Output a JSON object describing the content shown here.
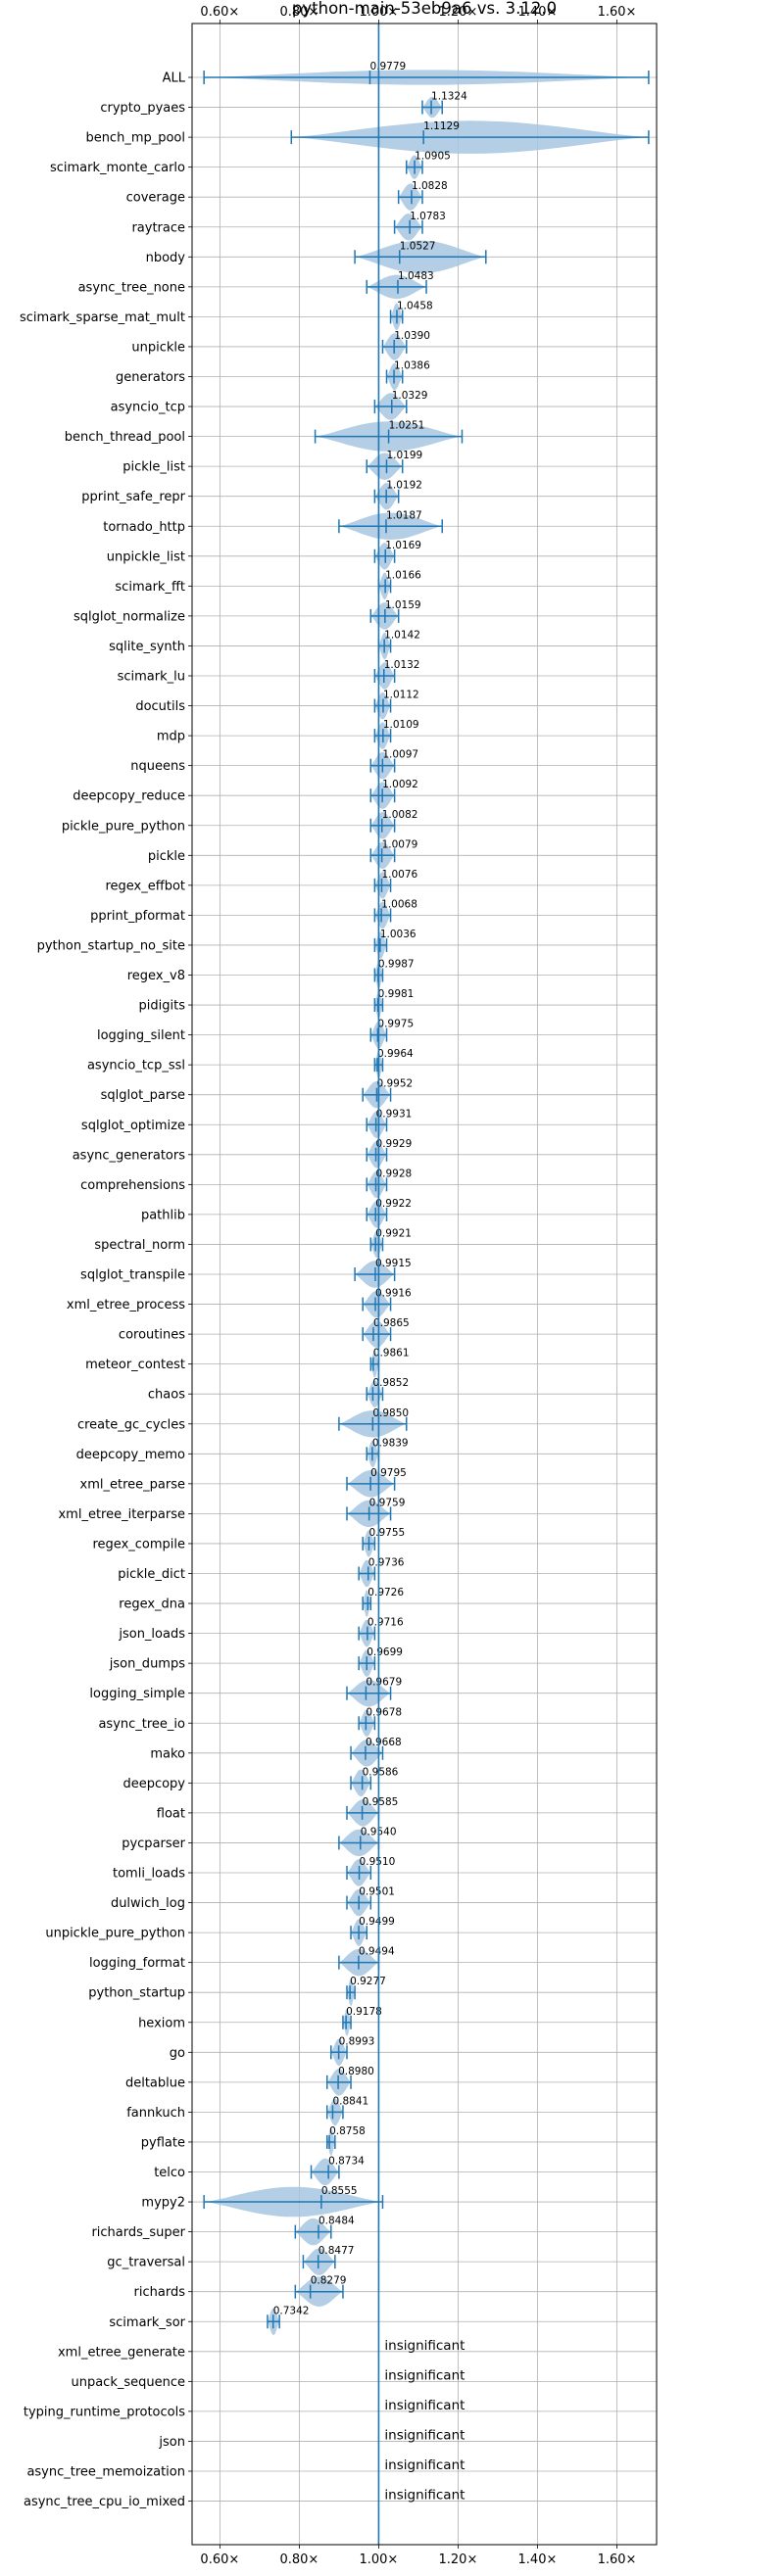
{
  "chart_data": {
    "type": "violin",
    "title": "python-main-53eb9a6 vs. 3.12.0",
    "xlim": [
      0.53,
      1.7
    ],
    "x_ticks": [
      0.6,
      0.8,
      1.0,
      1.2,
      1.4,
      1.6
    ],
    "x_tick_labels": [
      "0.60×",
      "0.80×",
      "1.00×",
      "1.20×",
      "1.40×",
      "1.60×"
    ],
    "tick_positions": [
      "top",
      "bottom"
    ],
    "grid": true,
    "reference_line": 1.0,
    "colors": {
      "violin": "#a6c5e0",
      "line": "#1f77b4",
      "grid": "#b0b0b0"
    },
    "benchmarks": [
      {
        "name": "ALL",
        "label": "0.9779",
        "center": 0.9779,
        "min": 0.56,
        "max": 1.68,
        "width": 0.25
      },
      {
        "name": "crypto_pyaes",
        "label": "1.1324",
        "center": 1.1324,
        "min": 1.11,
        "max": 1.16,
        "width": 0.35
      },
      {
        "name": "bench_mp_pool",
        "label": "1.1129",
        "center": 1.1129,
        "min": 0.78,
        "max": 1.68,
        "width": 0.55
      },
      {
        "name": "scimark_monte_carlo",
        "label": "1.0905",
        "center": 1.0905,
        "min": 1.07,
        "max": 1.11,
        "width": 0.4
      },
      {
        "name": "coverage",
        "label": "1.0828",
        "center": 1.0828,
        "min": 1.05,
        "max": 1.11,
        "width": 0.45
      },
      {
        "name": "raytrace",
        "label": "1.0783",
        "center": 1.0783,
        "min": 1.04,
        "max": 1.11,
        "width": 0.45
      },
      {
        "name": "nbody",
        "label": "1.0527",
        "center": 1.0527,
        "min": 0.94,
        "max": 1.27,
        "width": 0.55
      },
      {
        "name": "async_tree_none",
        "label": "1.0483",
        "center": 1.0483,
        "min": 0.97,
        "max": 1.12,
        "width": 0.4
      },
      {
        "name": "scimark_sparse_mat_mult",
        "label": "1.0458",
        "center": 1.0458,
        "min": 1.03,
        "max": 1.06,
        "width": 0.45
      },
      {
        "name": "unpickle",
        "label": "1.0390",
        "center": 1.039,
        "min": 1.01,
        "max": 1.07,
        "width": 0.45
      },
      {
        "name": "generators",
        "label": "1.0386",
        "center": 1.0386,
        "min": 1.02,
        "max": 1.06,
        "width": 0.45
      },
      {
        "name": "asyncio_tcp",
        "label": "1.0329",
        "center": 1.0329,
        "min": 0.99,
        "max": 1.07,
        "width": 0.45
      },
      {
        "name": "bench_thread_pool",
        "label": "1.0251",
        "center": 1.0251,
        "min": 0.84,
        "max": 1.21,
        "width": 0.5
      },
      {
        "name": "pickle_list",
        "label": "1.0199",
        "center": 1.0199,
        "min": 0.97,
        "max": 1.06,
        "width": 0.45
      },
      {
        "name": "pprint_safe_repr",
        "label": "1.0192",
        "center": 1.0192,
        "min": 0.99,
        "max": 1.05,
        "width": 0.45
      },
      {
        "name": "tornado_http",
        "label": "1.0187",
        "center": 1.0187,
        "min": 0.9,
        "max": 1.16,
        "width": 0.45
      },
      {
        "name": "unpickle_list",
        "label": "1.0169",
        "center": 1.0169,
        "min": 0.99,
        "max": 1.04,
        "width": 0.45
      },
      {
        "name": "scimark_fft",
        "label": "1.0166",
        "center": 1.0166,
        "min": 1.0,
        "max": 1.03,
        "width": 0.45
      },
      {
        "name": "sqlglot_normalize",
        "label": "1.0159",
        "center": 1.0159,
        "min": 0.98,
        "max": 1.05,
        "width": 0.45
      },
      {
        "name": "sqlite_synth",
        "label": "1.0142",
        "center": 1.0142,
        "min": 1.0,
        "max": 1.03,
        "width": 0.45
      },
      {
        "name": "scimark_lu",
        "label": "1.0132",
        "center": 1.0132,
        "min": 0.99,
        "max": 1.04,
        "width": 0.45
      },
      {
        "name": "docutils",
        "label": "1.0112",
        "center": 1.0112,
        "min": 0.99,
        "max": 1.03,
        "width": 0.45
      },
      {
        "name": "mdp",
        "label": "1.0109",
        "center": 1.0109,
        "min": 0.99,
        "max": 1.03,
        "width": 0.45
      },
      {
        "name": "nqueens",
        "label": "1.0097",
        "center": 1.0097,
        "min": 0.98,
        "max": 1.04,
        "width": 0.45
      },
      {
        "name": "deepcopy_reduce",
        "label": "1.0092",
        "center": 1.0092,
        "min": 0.98,
        "max": 1.04,
        "width": 0.45
      },
      {
        "name": "pickle_pure_python",
        "label": "1.0082",
        "center": 1.0082,
        "min": 0.98,
        "max": 1.04,
        "width": 0.45
      },
      {
        "name": "pickle",
        "label": "1.0079",
        "center": 1.0079,
        "min": 0.98,
        "max": 1.04,
        "width": 0.45
      },
      {
        "name": "regex_effbot",
        "label": "1.0076",
        "center": 1.0076,
        "min": 0.99,
        "max": 1.03,
        "width": 0.45
      },
      {
        "name": "pprint_pformat",
        "label": "1.0068",
        "center": 1.0068,
        "min": 0.99,
        "max": 1.03,
        "width": 0.45
      },
      {
        "name": "python_startup_no_site",
        "label": "1.0036",
        "center": 1.0036,
        "min": 0.99,
        "max": 1.02,
        "width": 0.45
      },
      {
        "name": "regex_v8",
        "label": "0.9987",
        "center": 0.9987,
        "min": 0.99,
        "max": 1.01,
        "width": 0.45
      },
      {
        "name": "pidigits",
        "label": "0.9981",
        "center": 0.9981,
        "min": 0.99,
        "max": 1.01,
        "width": 0.45
      },
      {
        "name": "logging_silent",
        "label": "0.9975",
        "center": 0.9975,
        "min": 0.98,
        "max": 1.02,
        "width": 0.45
      },
      {
        "name": "asyncio_tcp_ssl",
        "label": "0.9964",
        "center": 0.9964,
        "min": 0.99,
        "max": 1.01,
        "width": 0.45
      },
      {
        "name": "sqlglot_parse",
        "label": "0.9952",
        "center": 0.9952,
        "min": 0.96,
        "max": 1.03,
        "width": 0.45
      },
      {
        "name": "sqlglot_optimize",
        "label": "0.9931",
        "center": 0.9931,
        "min": 0.97,
        "max": 1.02,
        "width": 0.45
      },
      {
        "name": "async_generators",
        "label": "0.9929",
        "center": 0.9929,
        "min": 0.97,
        "max": 1.02,
        "width": 0.45
      },
      {
        "name": "comprehensions",
        "label": "0.9928",
        "center": 0.9928,
        "min": 0.97,
        "max": 1.02,
        "width": 0.45
      },
      {
        "name": "pathlib",
        "label": "0.9922",
        "center": 0.9922,
        "min": 0.97,
        "max": 1.02,
        "width": 0.45
      },
      {
        "name": "spectral_norm",
        "label": "0.9921",
        "center": 0.9921,
        "min": 0.98,
        "max": 1.01,
        "width": 0.45
      },
      {
        "name": "sqlglot_transpile",
        "label": "0.9915",
        "center": 0.9915,
        "min": 0.94,
        "max": 1.04,
        "width": 0.45
      },
      {
        "name": "xml_etree_process",
        "label": "0.9916",
        "center": 0.9916,
        "min": 0.96,
        "max": 1.03,
        "width": 0.45
      },
      {
        "name": "coroutines",
        "label": "0.9865",
        "center": 0.9865,
        "min": 0.96,
        "max": 1.03,
        "width": 0.45
      },
      {
        "name": "meteor_contest",
        "label": "0.9861",
        "center": 0.9861,
        "min": 0.98,
        "max": 1.0,
        "width": 0.45
      },
      {
        "name": "chaos",
        "label": "0.9852",
        "center": 0.9852,
        "min": 0.97,
        "max": 1.01,
        "width": 0.45
      },
      {
        "name": "create_gc_cycles",
        "label": "0.9850",
        "center": 0.985,
        "min": 0.9,
        "max": 1.07,
        "width": 0.45
      },
      {
        "name": "deepcopy_memo",
        "label": "0.9839",
        "center": 0.9839,
        "min": 0.97,
        "max": 1.0,
        "width": 0.45
      },
      {
        "name": "xml_etree_parse",
        "label": "0.9795",
        "center": 0.9795,
        "min": 0.92,
        "max": 1.04,
        "width": 0.45
      },
      {
        "name": "xml_etree_iterparse",
        "label": "0.9759",
        "center": 0.9759,
        "min": 0.92,
        "max": 1.03,
        "width": 0.45
      },
      {
        "name": "regex_compile",
        "label": "0.9755",
        "center": 0.9755,
        "min": 0.96,
        "max": 0.99,
        "width": 0.45
      },
      {
        "name": "pickle_dict",
        "label": "0.9736",
        "center": 0.9736,
        "min": 0.95,
        "max": 0.99,
        "width": 0.45
      },
      {
        "name": "regex_dna",
        "label": "0.9726",
        "center": 0.9726,
        "min": 0.96,
        "max": 0.98,
        "width": 0.45
      },
      {
        "name": "json_loads",
        "label": "0.9716",
        "center": 0.9716,
        "min": 0.95,
        "max": 0.99,
        "width": 0.45
      },
      {
        "name": "json_dumps",
        "label": "0.9699",
        "center": 0.9699,
        "min": 0.95,
        "max": 0.99,
        "width": 0.45
      },
      {
        "name": "logging_simple",
        "label": "0.9679",
        "center": 0.9679,
        "min": 0.92,
        "max": 1.03,
        "width": 0.45
      },
      {
        "name": "async_tree_io",
        "label": "0.9678",
        "center": 0.9678,
        "min": 0.95,
        "max": 0.99,
        "width": 0.45
      },
      {
        "name": "mako",
        "label": "0.9668",
        "center": 0.9668,
        "min": 0.93,
        "max": 1.01,
        "width": 0.45
      },
      {
        "name": "deepcopy",
        "label": "0.9586",
        "center": 0.9586,
        "min": 0.93,
        "max": 0.98,
        "width": 0.45
      },
      {
        "name": "float",
        "label": "0.9585",
        "center": 0.9585,
        "min": 0.92,
        "max": 1.0,
        "width": 0.45
      },
      {
        "name": "pycparser",
        "label": "0.9540",
        "center": 0.954,
        "min": 0.9,
        "max": 1.0,
        "width": 0.45
      },
      {
        "name": "tomli_loads",
        "label": "0.9510",
        "center": 0.951,
        "min": 0.92,
        "max": 0.98,
        "width": 0.45
      },
      {
        "name": "dulwich_log",
        "label": "0.9501",
        "center": 0.9501,
        "min": 0.92,
        "max": 0.98,
        "width": 0.45
      },
      {
        "name": "unpickle_pure_python",
        "label": "0.9499",
        "center": 0.9499,
        "min": 0.93,
        "max": 0.97,
        "width": 0.45
      },
      {
        "name": "logging_format",
        "label": "0.9494",
        "center": 0.9494,
        "min": 0.9,
        "max": 1.0,
        "width": 0.45
      },
      {
        "name": "python_startup",
        "label": "0.9277",
        "center": 0.9277,
        "min": 0.92,
        "max": 0.94,
        "width": 0.45
      },
      {
        "name": "hexiom",
        "label": "0.9178",
        "center": 0.9178,
        "min": 0.91,
        "max": 0.93,
        "width": 0.45
      },
      {
        "name": "go",
        "label": "0.8993",
        "center": 0.8993,
        "min": 0.88,
        "max": 0.92,
        "width": 0.45
      },
      {
        "name": "deltablue",
        "label": "0.8980",
        "center": 0.898,
        "min": 0.87,
        "max": 0.93,
        "width": 0.45
      },
      {
        "name": "fannkuch",
        "label": "0.8841",
        "center": 0.8841,
        "min": 0.87,
        "max": 0.91,
        "width": 0.45
      },
      {
        "name": "pyflate",
        "label": "0.8758",
        "center": 0.8758,
        "min": 0.87,
        "max": 0.89,
        "width": 0.45
      },
      {
        "name": "telco",
        "label": "0.8734",
        "center": 0.8734,
        "min": 0.83,
        "max": 0.9,
        "width": 0.45
      },
      {
        "name": "mypy2",
        "label": "0.8555",
        "center": 0.8555,
        "min": 0.56,
        "max": 1.01,
        "width": 0.5
      },
      {
        "name": "richards_super",
        "label": "0.8484",
        "center": 0.8484,
        "min": 0.79,
        "max": 0.88,
        "width": 0.45
      },
      {
        "name": "gc_traversal",
        "label": "0.8477",
        "center": 0.8477,
        "min": 0.81,
        "max": 0.89,
        "width": 0.45
      },
      {
        "name": "richards",
        "label": "0.8279",
        "center": 0.8279,
        "min": 0.79,
        "max": 0.91,
        "width": 0.5
      },
      {
        "name": "scimark_sor",
        "label": "0.7342",
        "center": 0.7342,
        "min": 0.72,
        "max": 0.75,
        "width": 0.45
      },
      {
        "name": "xml_etree_generate",
        "label": "insignificant",
        "insignificant": true
      },
      {
        "name": "unpack_sequence",
        "label": "insignificant",
        "insignificant": true
      },
      {
        "name": "typing_runtime_protocols",
        "label": "insignificant",
        "insignificant": true
      },
      {
        "name": "json",
        "label": "insignificant",
        "insignificant": true
      },
      {
        "name": "async_tree_memoization",
        "label": "insignificant",
        "insignificant": true
      },
      {
        "name": "async_tree_cpu_io_mixed",
        "label": "insignificant",
        "insignificant": true
      }
    ]
  }
}
